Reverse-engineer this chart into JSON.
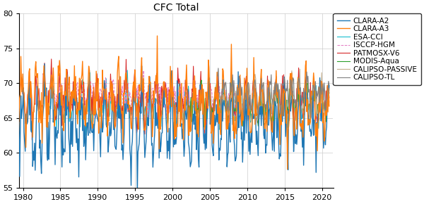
{
  "title": "CFC Total",
  "ylim": [
    55,
    80
  ],
  "yticks": [
    55,
    60,
    65,
    70,
    75,
    80
  ],
  "xlim_start": 1979.5,
  "xlim_end": 2021.5,
  "xticks": [
    1980,
    1985,
    1990,
    1995,
    2000,
    2005,
    2010,
    2015,
    2020
  ],
  "series": [
    {
      "label": "CLARA-A2",
      "color": "#1f77b4",
      "lw": 1.0,
      "ls": "-",
      "zorder": 3,
      "start": 1979,
      "end": 2021
    },
    {
      "label": "CLARA-A3",
      "color": "#ff7f0e",
      "lw": 1.0,
      "ls": "-",
      "zorder": 4,
      "start": 1979,
      "end": 2021
    },
    {
      "label": "ESA-CCI",
      "color": "#17becf",
      "lw": 0.8,
      "ls": "-",
      "zorder": 2,
      "start": 1982,
      "end": 2020
    },
    {
      "label": "ISCCP-HGM",
      "color": "#e377c2",
      "lw": 0.7,
      "ls": "--",
      "zorder": 2,
      "start": 1984,
      "end": 2009
    },
    {
      "label": "PATMOSX-V6",
      "color": "#d62728",
      "lw": 0.8,
      "ls": "-",
      "zorder": 2,
      "start": 1979,
      "end": 2021
    },
    {
      "label": "MODIS-Aqua",
      "color": "#2ca02c",
      "lw": 0.8,
      "ls": "-",
      "zorder": 2,
      "start": 2002,
      "end": 2021
    },
    {
      "label": "CALIPSO-PASSIVE",
      "color": "#c5b090",
      "lw": 0.8,
      "ls": "-",
      "zorder": 2,
      "start": 2006,
      "end": 2021
    },
    {
      "label": "CALIPSO-TL",
      "color": "#7f7f7f",
      "lw": 0.8,
      "ls": "-",
      "zorder": 5,
      "start": 2006,
      "end": 2021
    }
  ],
  "legend_fontsize": 7.5,
  "title_fontsize": 10,
  "tick_fontsize": 8,
  "figsize": [
    6.0,
    2.9
  ],
  "dpi": 100
}
